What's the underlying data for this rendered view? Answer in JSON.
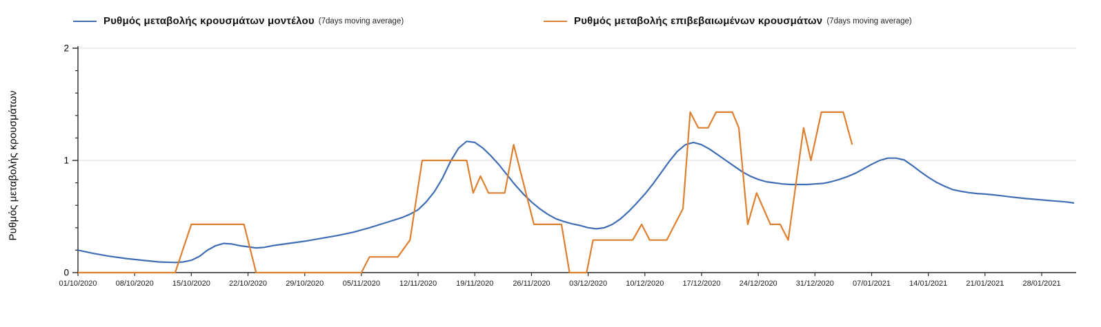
{
  "legend": [
    {
      "label": "Ρυθμός μεταβολής κρουσμάτων μοντέλου",
      "suffix": "(7days moving average)",
      "color": "#3f6db3"
    },
    {
      "label": "Ρυθμός μεταβολής επιβεβαιωμένων κρουσμάτων",
      "suffix": "(7days moving average)",
      "color": "#dd7f2e"
    }
  ],
  "y_axis_title": "Ρυθμός μεταβολής κρουσμάτων",
  "chart_data": {
    "type": "line",
    "title": "",
    "xlabel": "",
    "ylabel": "Ρυθμός μεταβολής κρουσμάτων",
    "ylim": [
      0,
      2
    ],
    "y_major_ticks": [
      0,
      1,
      2
    ],
    "y_minor_step": 0.2,
    "grid_y_values": [
      1,
      2
    ],
    "grid": "horizontal-major",
    "legend_position": "top",
    "x_unit": "days since 01/10/2020",
    "x_ticks": [
      {
        "day": 0,
        "label": "01/10/2020"
      },
      {
        "day": 7,
        "label": "08/10/2020"
      },
      {
        "day": 14,
        "label": "15/10/2020"
      },
      {
        "day": 21,
        "label": "22/10/2020"
      },
      {
        "day": 28,
        "label": "29/10/2020"
      },
      {
        "day": 35,
        "label": "05/11/2020"
      },
      {
        "day": 42,
        "label": "12/11/2020"
      },
      {
        "day": 49,
        "label": "19/11/2020"
      },
      {
        "day": 56,
        "label": "26/11/2020"
      },
      {
        "day": 63,
        "label": "03/12/2020"
      },
      {
        "day": 70,
        "label": "10/12/2020"
      },
      {
        "day": 77,
        "label": "17/12/2020"
      },
      {
        "day": 84,
        "label": "24/12/2020"
      },
      {
        "day": 91,
        "label": "31/12/2020"
      },
      {
        "day": 98,
        "label": "07/01/2021"
      },
      {
        "day": 105,
        "label": "14/01/2021"
      },
      {
        "day": 112,
        "label": "21/01/2021"
      },
      {
        "day": 119,
        "label": "28/01/2021"
      }
    ],
    "series": [
      {
        "name": "Ρυθμός μεταβολής κρουσμάτων μοντέλου (7days moving average)",
        "color": "#3f6db3",
        "points": [
          [
            0,
            0.2
          ],
          [
            2,
            0.17
          ],
          [
            4,
            0.145
          ],
          [
            6,
            0.125
          ],
          [
            8,
            0.11
          ],
          [
            10,
            0.095
          ],
          [
            12,
            0.09
          ],
          [
            13,
            0.095
          ],
          [
            14,
            0.11
          ],
          [
            15,
            0.145
          ],
          [
            16,
            0.2
          ],
          [
            17,
            0.24
          ],
          [
            18,
            0.26
          ],
          [
            19,
            0.255
          ],
          [
            20,
            0.24
          ],
          [
            21,
            0.23
          ],
          [
            22,
            0.22
          ],
          [
            23,
            0.225
          ],
          [
            24,
            0.24
          ],
          [
            26,
            0.26
          ],
          [
            28,
            0.28
          ],
          [
            30,
            0.305
          ],
          [
            32,
            0.33
          ],
          [
            34,
            0.36
          ],
          [
            36,
            0.4
          ],
          [
            38,
            0.445
          ],
          [
            40,
            0.49
          ],
          [
            41,
            0.52
          ],
          [
            42,
            0.56
          ],
          [
            43,
            0.63
          ],
          [
            44,
            0.72
          ],
          [
            45,
            0.84
          ],
          [
            46,
            0.99
          ],
          [
            47,
            1.11
          ],
          [
            48,
            1.17
          ],
          [
            49,
            1.16
          ],
          [
            50,
            1.11
          ],
          [
            51,
            1.04
          ],
          [
            52,
            0.96
          ],
          [
            53,
            0.87
          ],
          [
            54,
            0.78
          ],
          [
            55,
            0.7
          ],
          [
            56,
            0.63
          ],
          [
            57,
            0.57
          ],
          [
            58,
            0.52
          ],
          [
            59,
            0.48
          ],
          [
            60,
            0.455
          ],
          [
            61,
            0.435
          ],
          [
            62,
            0.42
          ],
          [
            63,
            0.4
          ],
          [
            64,
            0.39
          ],
          [
            65,
            0.4
          ],
          [
            66,
            0.43
          ],
          [
            67,
            0.48
          ],
          [
            68,
            0.545
          ],
          [
            69,
            0.62
          ],
          [
            70,
            0.7
          ],
          [
            71,
            0.79
          ],
          [
            72,
            0.89
          ],
          [
            73,
            0.99
          ],
          [
            74,
            1.08
          ],
          [
            75,
            1.14
          ],
          [
            76,
            1.16
          ],
          [
            77,
            1.14
          ],
          [
            78,
            1.1
          ],
          [
            79,
            1.05
          ],
          [
            80,
            1.0
          ],
          [
            81,
            0.95
          ],
          [
            82,
            0.9
          ],
          [
            83,
            0.86
          ],
          [
            84,
            0.83
          ],
          [
            85,
            0.81
          ],
          [
            86,
            0.8
          ],
          [
            87,
            0.79
          ],
          [
            88,
            0.785
          ],
          [
            89,
            0.785
          ],
          [
            90,
            0.785
          ],
          [
            91,
            0.79
          ],
          [
            92,
            0.795
          ],
          [
            93,
            0.81
          ],
          [
            94,
            0.83
          ],
          [
            95,
            0.855
          ],
          [
            96,
            0.885
          ],
          [
            97,
            0.925
          ],
          [
            98,
            0.965
          ],
          [
            99,
            1.0
          ],
          [
            100,
            1.02
          ],
          [
            101,
            1.02
          ],
          [
            102,
            1.005
          ],
          [
            103,
            0.955
          ],
          [
            104,
            0.9
          ],
          [
            105,
            0.85
          ],
          [
            106,
            0.805
          ],
          [
            107,
            0.77
          ],
          [
            108,
            0.74
          ],
          [
            109,
            0.725
          ],
          [
            110,
            0.713
          ],
          [
            111,
            0.705
          ],
          [
            112,
            0.7
          ],
          [
            113,
            0.693
          ],
          [
            114,
            0.685
          ],
          [
            115,
            0.676
          ],
          [
            116,
            0.668
          ],
          [
            117,
            0.66
          ],
          [
            118,
            0.654
          ],
          [
            119,
            0.648
          ],
          [
            120,
            0.642
          ],
          [
            121,
            0.636
          ],
          [
            122,
            0.63
          ],
          [
            123,
            0.62
          ]
        ]
      },
      {
        "name": "Ρυθμός μεταβολής επιβεβαιωμένων κρουσμάτων (7days moving average)",
        "color": "#dd7f2e",
        "points": [
          [
            0,
            0
          ],
          [
            12,
            0
          ],
          [
            14,
            0.43
          ],
          [
            20.5,
            0.43
          ],
          [
            22,
            0
          ],
          [
            35,
            0
          ],
          [
            36,
            0.14
          ],
          [
            39.5,
            0.14
          ],
          [
            41,
            0.29
          ],
          [
            42.5,
            1.0
          ],
          [
            48,
            1.0
          ],
          [
            48.8,
            0.71
          ],
          [
            49.7,
            0.86
          ],
          [
            50.7,
            0.71
          ],
          [
            52.7,
            0.71
          ],
          [
            53.8,
            1.14
          ],
          [
            56.3,
            0.43
          ],
          [
            59.7,
            0.43
          ],
          [
            60.7,
            0
          ],
          [
            62.8,
            0
          ],
          [
            63.6,
            0.29
          ],
          [
            68.5,
            0.29
          ],
          [
            69.6,
            0.43
          ],
          [
            70.6,
            0.29
          ],
          [
            72.7,
            0.29
          ],
          [
            74.7,
            0.57
          ],
          [
            75.6,
            1.43
          ],
          [
            76.6,
            1.29
          ],
          [
            77.8,
            1.29
          ],
          [
            78.8,
            1.43
          ],
          [
            80.8,
            1.43
          ],
          [
            81.6,
            1.29
          ],
          [
            82.7,
            0.43
          ],
          [
            83.8,
            0.71
          ],
          [
            85.5,
            0.43
          ],
          [
            86.7,
            0.43
          ],
          [
            87.7,
            0.29
          ],
          [
            89.6,
            1.29
          ],
          [
            90.5,
            1.0
          ],
          [
            91.8,
            1.43
          ],
          [
            94.5,
            1.43
          ],
          [
            95.6,
            1.14
          ]
        ]
      }
    ]
  }
}
